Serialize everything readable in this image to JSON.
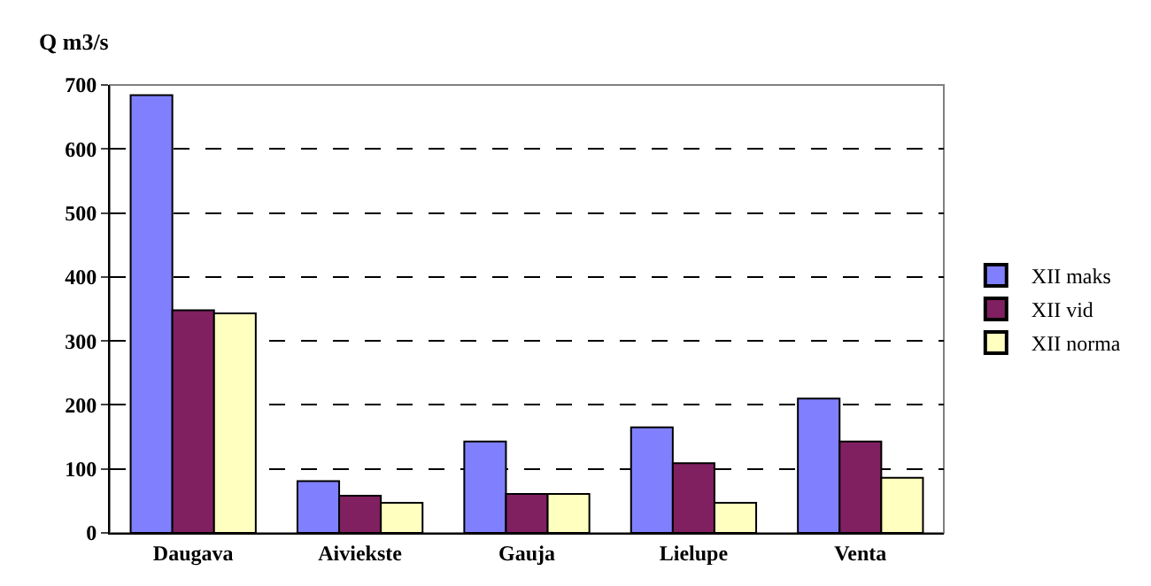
{
  "chart_data": {
    "type": "bar",
    "ylabel": "Q m3/s",
    "categories": [
      "Daugava",
      "Aiviekste",
      "Gauja",
      "Lielupe",
      "Venta"
    ],
    "series": [
      {
        "name": "XII maks",
        "color": "#8080ff",
        "values": [
          684,
          81,
          143,
          165,
          210
        ]
      },
      {
        "name": "XII vid",
        "color": "#802060",
        "values": [
          348,
          58,
          61,
          109,
          143
        ]
      },
      {
        "name": "XII norma",
        "color": "#ffffc0",
        "values": [
          343,
          47,
          61,
          47,
          86
        ]
      }
    ],
    "ylim": [
      0,
      700
    ],
    "yticks": [
      0,
      100,
      200,
      300,
      400,
      500,
      600,
      700
    ],
    "grid": "y",
    "legend": "right"
  }
}
